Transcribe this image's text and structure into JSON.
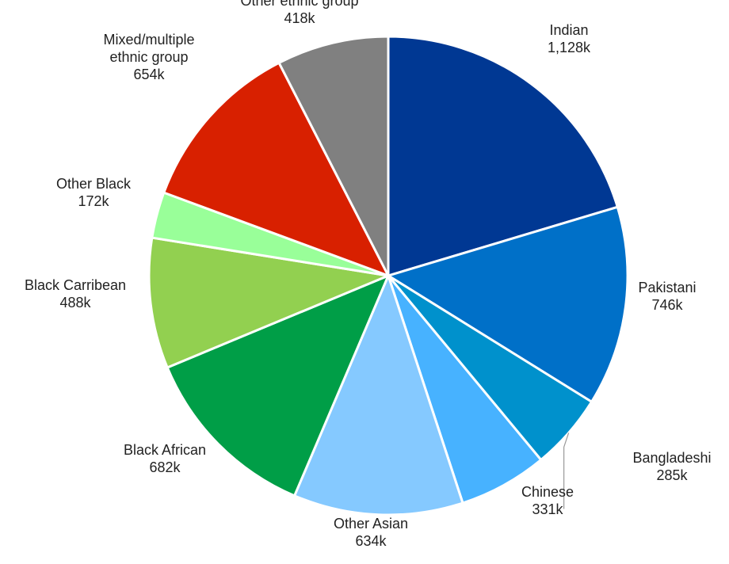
{
  "chart_data": {
    "type": "pie",
    "title": "",
    "unit_suffix": "k",
    "slices": [
      {
        "label": [
          "Indian"
        ],
        "value": 1128,
        "value_label": "1,128k",
        "color": "#003893"
      },
      {
        "label": [
          "Pakistani"
        ],
        "value": 746,
        "value_label": "746k",
        "color": "#0070c8"
      },
      {
        "label": [
          "Bangladeshi"
        ],
        "value": 285,
        "value_label": "285k",
        "color": "#0091cc"
      },
      {
        "label": [
          "Chinese"
        ],
        "value": 331,
        "value_label": "331k",
        "color": "#47b2ff"
      },
      {
        "label": [
          "Other Asian"
        ],
        "value": 634,
        "value_label": "634k",
        "color": "#85c9ff"
      },
      {
        "label": [
          "Black African"
        ],
        "value": 682,
        "value_label": "682k",
        "color": "#009e47"
      },
      {
        "label": [
          "Black Carribean"
        ],
        "value": 488,
        "value_label": "488k",
        "color": "#92d050"
      },
      {
        "label": [
          "Other Black"
        ],
        "value": 172,
        "value_label": "172k",
        "color": "#99ff99"
      },
      {
        "label": [
          "Mixed/multiple",
          "ethnic group"
        ],
        "value": 654,
        "value_label": "654k",
        "color": "#d82000"
      },
      {
        "label": [
          "Other ethnic group"
        ],
        "value": 418,
        "value_label": "418k",
        "color": "#808080"
      }
    ]
  }
}
